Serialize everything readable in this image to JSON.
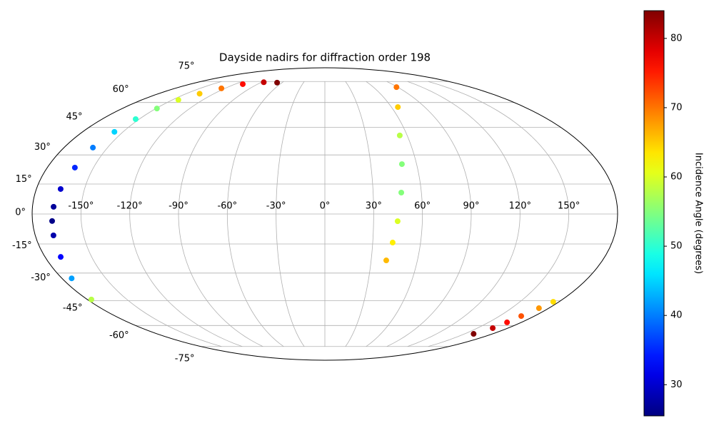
{
  "chart_data": {
    "type": "scatter",
    "projection": "mollweide",
    "title": "Dayside nadirs for diffraction order 198",
    "colorbar_label": "Incidence Angle (degrees)",
    "colormap": "jet",
    "x": [
      -66.9,
      -86.6,
      -109.8,
      -124.3,
      -135.5,
      -144,
      -149.1,
      -152.9,
      -156.4,
      -160.1,
      -162.1,
      -164.9,
      -167,
      -167.9,
      -168.7,
      -169.9,
      -173.4,
      -177,
      175.6,
      172.1,
      168.6,
      166.8,
      165,
      159.7,
      88.5,
      65.8,
      54.6,
      50.4,
      47.5,
      44.8,
      42.5,
      39.8
    ],
    "y": [
      74.1,
      74.4,
      72.9,
      69.7,
      65.9,
      61.7,
      56.2,
      49.8,
      42.5,
      33.9,
      23.4,
      12.5,
      3.6,
      -3.5,
      -10.7,
      -21.6,
      -32.8,
      -44.4,
      -45.7,
      -49.4,
      -54.1,
      -58,
      -61.7,
      -65.6,
      70.6,
      57.1,
      40.5,
      25.2,
      10.7,
      -3.6,
      -14.3,
      -23.4
    ],
    "values": [
      84,
      80,
      76,
      70,
      65,
      60,
      55,
      50,
      45,
      40,
      35,
      30,
      27,
      26,
      28,
      33,
      42,
      58,
      64,
      68,
      72,
      76,
      80,
      84,
      70,
      65,
      58,
      55,
      55,
      60,
      63,
      66
    ],
    "clim": [
      25.5,
      84
    ],
    "cticks": [
      30,
      40,
      50,
      60,
      70,
      80
    ],
    "xticks": [
      {
        "value": -150,
        "label": "-150°"
      },
      {
        "value": -120,
        "label": "-120°"
      },
      {
        "value": -90,
        "label": "-90°"
      },
      {
        "value": -60,
        "label": "-60°"
      },
      {
        "value": -30,
        "label": "-30°"
      },
      {
        "value": 0,
        "label": "0°"
      },
      {
        "value": 30,
        "label": "30°"
      },
      {
        "value": 60,
        "label": "60°"
      },
      {
        "value": 90,
        "label": "90°"
      },
      {
        "value": 120,
        "label": "120°"
      },
      {
        "value": 150,
        "label": "150°"
      }
    ],
    "yticks": [
      {
        "value": -75,
        "label": "-75°"
      },
      {
        "value": -60,
        "label": "-60°"
      },
      {
        "value": -45,
        "label": "-45°"
      },
      {
        "value": -30,
        "label": "-30°"
      },
      {
        "value": -15,
        "label": "-15°"
      },
      {
        "value": 0,
        "label": "0°"
      },
      {
        "value": 15,
        "label": "15°"
      },
      {
        "value": 30,
        "label": "30°"
      },
      {
        "value": 45,
        "label": "45°"
      },
      {
        "value": 60,
        "label": "60°"
      },
      {
        "value": 75,
        "label": "75°"
      }
    ],
    "grid": true
  }
}
